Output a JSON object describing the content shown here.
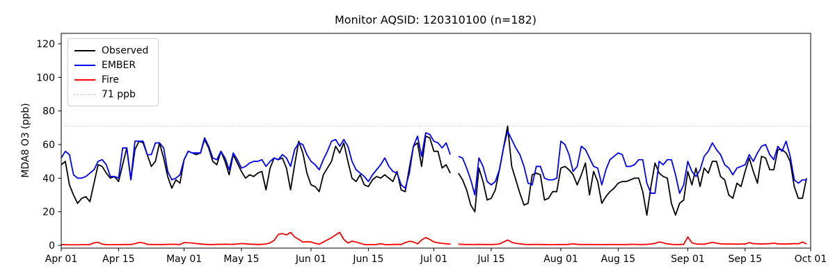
{
  "chart_data": {
    "type": "line",
    "title": "Monitor AQSID: 120310100 (n=182)",
    "xlabel": "",
    "ylabel": "MDA8 O3 (ppb)",
    "x_start_label": "Apr 01",
    "x_total_days": 183,
    "x_ticks": [
      {
        "day": 0,
        "label": "Apr 01"
      },
      {
        "day": 14,
        "label": "Apr 15"
      },
      {
        "day": 30,
        "label": "May 01"
      },
      {
        "day": 44,
        "label": "May 15"
      },
      {
        "day": 61,
        "label": "Jun 01"
      },
      {
        "day": 75,
        "label": "Jun 15"
      },
      {
        "day": 91,
        "label": "Jul 01"
      },
      {
        "day": 105,
        "label": "Jul 15"
      },
      {
        "day": 122,
        "label": "Aug 01"
      },
      {
        "day": 136,
        "label": "Aug 15"
      },
      {
        "day": 153,
        "label": "Sep 01"
      },
      {
        "day": 167,
        "label": "Sep 15"
      },
      {
        "day": 183,
        "label": "Oct 01"
      }
    ],
    "y_ticks": [
      0,
      20,
      40,
      60,
      80,
      100,
      120
    ],
    "ylim": [
      -2,
      127
    ],
    "grid": false,
    "legend_position": "upper left",
    "threshold": {
      "value": 71,
      "label": "71 ppb",
      "color": "#d3d3d3",
      "style": "dotted"
    },
    "series": [
      {
        "name": "Observed",
        "color": "#000000",
        "style": "solid",
        "values": [
          48,
          50,
          36,
          30,
          25,
          28,
          29,
          26,
          37,
          48,
          47,
          43,
          40,
          41,
          38,
          48,
          58,
          39,
          57,
          62,
          61,
          54,
          47,
          50,
          61,
          52,
          41,
          34,
          39,
          37,
          51,
          56,
          55,
          54,
          55,
          63,
          58,
          50,
          48,
          56,
          50,
          42,
          54,
          49,
          44,
          40,
          42,
          41,
          43,
          44,
          33,
          46,
          52,
          51,
          52,
          46,
          33,
          48,
          62,
          55,
          43,
          36,
          35,
          32,
          42,
          46,
          50,
          59,
          55,
          61,
          50,
          40,
          38,
          42,
          36,
          35,
          39,
          41,
          40,
          42,
          40,
          38,
          44,
          33,
          32,
          46,
          59,
          61,
          47,
          65,
          64,
          56,
          56,
          46,
          48,
          43,
          null,
          43,
          39,
          33,
          24,
          20,
          46,
          38,
          27,
          28,
          33,
          45,
          58,
          71,
          47,
          39,
          31,
          24,
          25,
          42,
          43,
          42,
          27,
          28,
          32,
          32,
          46,
          47,
          45,
          42,
          36,
          42,
          49,
          30,
          44,
          38,
          25,
          29,
          32,
          34,
          37,
          38,
          38,
          39,
          40,
          40,
          32,
          18,
          35,
          49,
          43,
          41,
          40,
          25,
          18,
          25,
          27,
          44,
          36,
          46,
          35,
          46,
          43,
          50,
          50,
          41,
          39,
          30,
          28,
          37,
          35,
          44,
          52,
          44,
          37,
          53,
          52,
          45,
          45,
          57,
          57,
          55,
          50,
          35,
          28,
          28,
          40
        ]
      },
      {
        "name": "EMBER",
        "color": "#0000ff",
        "style": "solid",
        "values": [
          52,
          56,
          54,
          42,
          40,
          40,
          41,
          43,
          45,
          50,
          51,
          48,
          41,
          41,
          40,
          58,
          58,
          39,
          62,
          62,
          62,
          54,
          54,
          61,
          61,
          58,
          44,
          39,
          40,
          42,
          51,
          56,
          55,
          55,
          55,
          64,
          59,
          52,
          51,
          56,
          52,
          45,
          55,
          51,
          46,
          47,
          49,
          50,
          50,
          51,
          47,
          50,
          52,
          51,
          54,
          52,
          47,
          57,
          61,
          60,
          54,
          50,
          48,
          45,
          51,
          56,
          62,
          63,
          59,
          63,
          59,
          50,
          45,
          43,
          41,
          38,
          42,
          45,
          48,
          52,
          47,
          44,
          43,
          36,
          34,
          43,
          59,
          65,
          53,
          67,
          66,
          62,
          61,
          58,
          61,
          54,
          null,
          53,
          52,
          46,
          39,
          30,
          52,
          47,
          38,
          36,
          38,
          45,
          58,
          68,
          63,
          58,
          54,
          47,
          37,
          36,
          47,
          47,
          40,
          39,
          39,
          40,
          62,
          60,
          54,
          44,
          47,
          59,
          57,
          52,
          47,
          46,
          36,
          45,
          51,
          53,
          55,
          54,
          47,
          47,
          48,
          51,
          51,
          37,
          31,
          31,
          50,
          48,
          51,
          51,
          42,
          31,
          36,
          50,
          44,
          41,
          45,
          53,
          56,
          61,
          57,
          54,
          48,
          46,
          42,
          46,
          47,
          48,
          54,
          50,
          55,
          59,
          60,
          54,
          51,
          59,
          56,
          62,
          53,
          39,
          37,
          39,
          39
        ]
      },
      {
        "name": "Fire",
        "color": "#ff0000",
        "style": "solid",
        "values": [
          0.5,
          0.4,
          0.3,
          0.3,
          0.3,
          0.4,
          0.4,
          0.5,
          1.5,
          1.8,
          0.7,
          0.4,
          0.4,
          0.4,
          0.4,
          0.5,
          0.5,
          0.5,
          1.0,
          1.7,
          1.5,
          0.6,
          0.5,
          0.5,
          0.5,
          0.5,
          0.6,
          0.6,
          0.6,
          0.5,
          1.7,
          1.5,
          1.4,
          1.0,
          0.8,
          0.6,
          0.5,
          0.5,
          0.6,
          0.6,
          0.7,
          0.6,
          0.6,
          0.8,
          1.1,
          0.9,
          0.7,
          0.6,
          0.5,
          0.6,
          0.8,
          1.5,
          3.0,
          6.5,
          7.0,
          6.2,
          7.7,
          5.0,
          3.5,
          1.9,
          2.2,
          2.0,
          1.2,
          0.7,
          2.0,
          3.3,
          4.6,
          6.2,
          7.7,
          3.5,
          1.4,
          2.5,
          2.0,
          1.2,
          0.5,
          0.4,
          0.4,
          0.5,
          0.9,
          0.5,
          0.4,
          0.5,
          0.6,
          0.5,
          1.6,
          2.4,
          2.0,
          0.9,
          3.2,
          4.6,
          3.5,
          2.0,
          1.5,
          1.2,
          0.9,
          0.8,
          null,
          0.7,
          0.6,
          0.5,
          0.5,
          0.5,
          0.6,
          0.5,
          0.5,
          0.5,
          0.6,
          0.8,
          2.0,
          3.2,
          1.8,
          1.2,
          0.9,
          0.6,
          0.5,
          0.5,
          0.6,
          0.5,
          0.5,
          0.4,
          0.4,
          0.5,
          0.5,
          0.5,
          0.6,
          0.9,
          0.6,
          0.5,
          0.5,
          0.5,
          0.5,
          0.5,
          0.4,
          0.5,
          0.5,
          0.5,
          0.5,
          0.5,
          0.5,
          0.6,
          0.6,
          0.5,
          0.5,
          0.6,
          0.8,
          1.2,
          2.0,
          1.5,
          0.9,
          0.6,
          0.5,
          0.5,
          0.6,
          5.0,
          1.5,
          0.8,
          0.7,
          0.7,
          1.2,
          1.8,
          1.3,
          0.9,
          0.8,
          0.8,
          0.8,
          0.7,
          0.8,
          0.8,
          1.6,
          1.0,
          0.9,
          0.8,
          0.9,
          1.0,
          1.3,
          0.9,
          0.8,
          0.8,
          0.9,
          1.0,
          0.9,
          2.0,
          0.8
        ]
      }
    ]
  },
  "legend": {
    "items": [
      {
        "label": "Observed",
        "color": "#000000",
        "style": "solid"
      },
      {
        "label": "EMBER",
        "color": "#0000ff",
        "style": "solid"
      },
      {
        "label": "Fire",
        "color": "#ff0000",
        "style": "solid"
      },
      {
        "label": "71 ppb",
        "color": "#d3d3d3",
        "style": "dotted"
      }
    ]
  }
}
